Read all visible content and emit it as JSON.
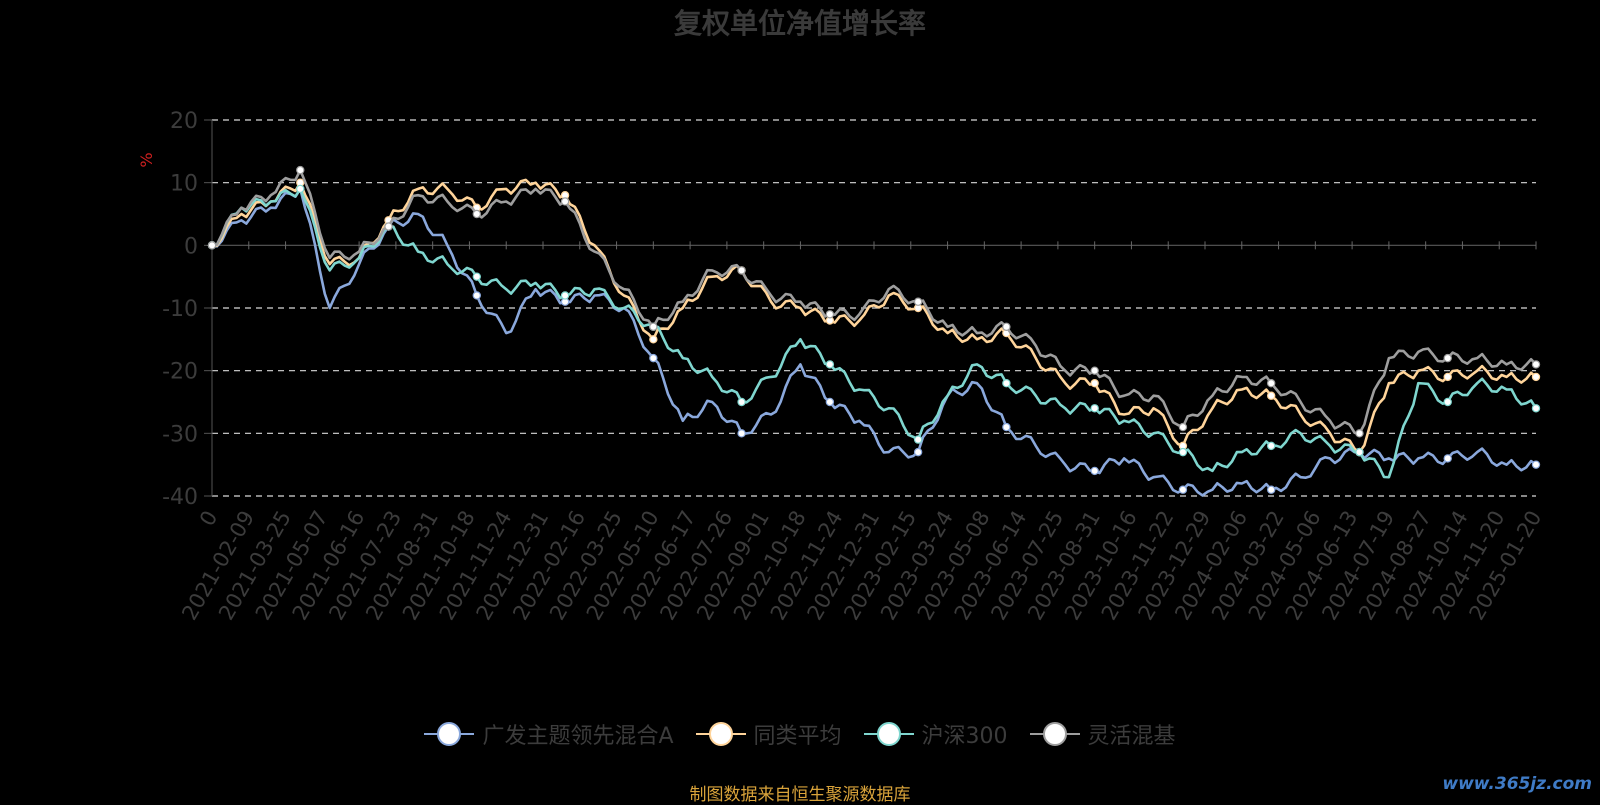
{
  "chart_data": {
    "type": "line",
    "title": "复权单位净值增长率",
    "ylabel": "%",
    "ylim": [
      -40,
      20
    ],
    "yticks": [
      "20",
      "10",
      "0",
      "-10",
      "-20",
      "-30",
      "-40"
    ],
    "x_ticks": [
      "0",
      "2021-02-09",
      "2021-03-25",
      "2021-05-07",
      "2021-06-16",
      "2021-07-23",
      "2021-08-31",
      "2021-10-18",
      "2021-11-24",
      "2021-12-31",
      "2022-02-16",
      "2022-03-25",
      "2022-05-10",
      "2022-06-17",
      "2022-07-26",
      "2022-09-01",
      "2022-10-18",
      "2022-11-24",
      "2022-12-31",
      "2023-02-15",
      "2023-03-24",
      "2023-05-08",
      "2023-06-14",
      "2023-07-25",
      "2023-08-31",
      "2023-10-16",
      "2023-11-22",
      "2023-12-29",
      "2024-02-06",
      "2024-03-22",
      "2024-05-06",
      "2024-06-13",
      "2024-07-19",
      "2024-08-27",
      "2024-10-14",
      "2024-11-20",
      "2025-01-20"
    ],
    "grid": true,
    "legend_position": "bottom",
    "series": [
      {
        "name": "广发主题领先混合A",
        "color": "#8aa8dc",
        "values": [
          0,
          4,
          6,
          9,
          -10,
          -3,
          3,
          5,
          0,
          -8,
          -14,
          -7,
          -9,
          -8,
          -10,
          -18,
          -28,
          -25,
          -30,
          -27,
          -19,
          -25,
          -28,
          -33,
          -33,
          -24,
          -22,
          -29,
          -32,
          -35,
          -36,
          -34,
          -37,
          -39,
          -39,
          -38,
          -39,
          -37,
          -34,
          -33,
          -34,
          -34,
          -34,
          -33,
          -35,
          -35
        ]
      },
      {
        "name": "同类平均",
        "color": "#ffd49a",
        "values": [
          0,
          5,
          7,
          10,
          -3,
          -2,
          4,
          9,
          9,
          6,
          9,
          10,
          8,
          0,
          -8,
          -15,
          -10,
          -5,
          -4,
          -9,
          -10,
          -12,
          -12,
          -8,
          -10,
          -14,
          -15,
          -14,
          -18,
          -22,
          -22,
          -27,
          -26,
          -32,
          -26,
          -23,
          -24,
          -27,
          -30,
          -33,
          -22,
          -20,
          -21,
          -20,
          -21,
          -21
        ]
      },
      {
        "name": "沪深300",
        "color": "#7fd6cf",
        "values": [
          0,
          6,
          7,
          9,
          -4,
          -2,
          3,
          -1,
          -3,
          -5,
          -7,
          -6,
          -8,
          -7,
          -10,
          -13,
          -18,
          -21,
          -25,
          -21,
          -15,
          -19,
          -23,
          -26,
          -31,
          -24,
          -19,
          -22,
          -24,
          -26,
          -26,
          -28,
          -30,
          -33,
          -36,
          -33,
          -32,
          -30,
          -32,
          -33,
          -37,
          -22,
          -25,
          -22,
          -23,
          -26
        ]
      },
      {
        "name": "灵活混基",
        "color": "#9e9e9e",
        "values": [
          0,
          6,
          8,
          12,
          -2,
          -1,
          3,
          8,
          7,
          5,
          7,
          9,
          7,
          -1,
          -7,
          -13,
          -9,
          -4,
          -4,
          -8,
          -9,
          -11,
          -11,
          -7,
          -9,
          -13,
          -14,
          -13,
          -16,
          -20,
          -20,
          -24,
          -24,
          -29,
          -24,
          -21,
          -22,
          -25,
          -28,
          -30,
          -18,
          -17,
          -18,
          -18,
          -19,
          -19
        ]
      }
    ]
  },
  "legend": {
    "items": [
      "广发主题领先混合A",
      "同类平均",
      "沪深300",
      "灵活混基"
    ]
  },
  "footer": {
    "source": "制图数据来自恒生聚源数据库",
    "watermark": "www.365jz.com"
  }
}
